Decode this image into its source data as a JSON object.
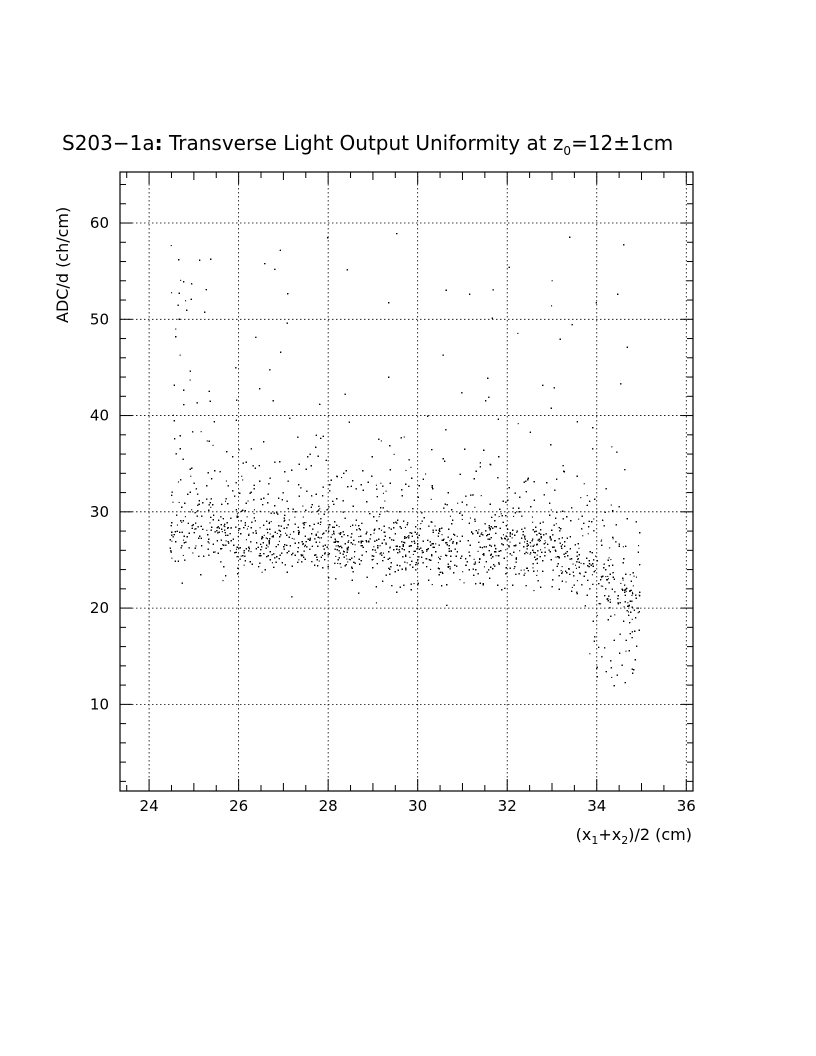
{
  "chart_data": {
    "type": "scatter",
    "title": {
      "prefix": "S203−1a",
      "colon": ":",
      "text": " Transverse Light Output Uniformity at z",
      "sub": "0",
      "suffix": "=12±1cm"
    },
    "ylabel": "ADC/d (ch/cm)",
    "xlabel": {
      "p1": "(x",
      "s1": "1",
      "p2": "+x",
      "s2": "2",
      "p3": ")/2 (cm)"
    },
    "xlim": [
      23.35,
      36.15
    ],
    "ylim": [
      1.0,
      65.3
    ],
    "xticks": [
      24,
      26,
      28,
      30,
      32,
      34,
      36
    ],
    "yticks": [
      10,
      20,
      30,
      40,
      50,
      60
    ],
    "grid": true,
    "legend": "none",
    "marker_color": "#000000",
    "density": {
      "x_range": [
        24.45,
        34.95
      ],
      "points_approx": 9000,
      "core_y_center_by_x": [
        [
          24.5,
          27.5
        ],
        [
          25.0,
          28.5
        ],
        [
          26.0,
          27.5
        ],
        [
          28.0,
          26.8
        ],
        [
          30.0,
          26.0
        ],
        [
          32.0,
          26.5
        ],
        [
          33.0,
          26.5
        ],
        [
          34.0,
          24.5
        ],
        [
          34.8,
          20.5
        ]
      ],
      "core_y_band": [
        20,
        33
      ],
      "sparse_tail_max_y": 59
    }
  }
}
